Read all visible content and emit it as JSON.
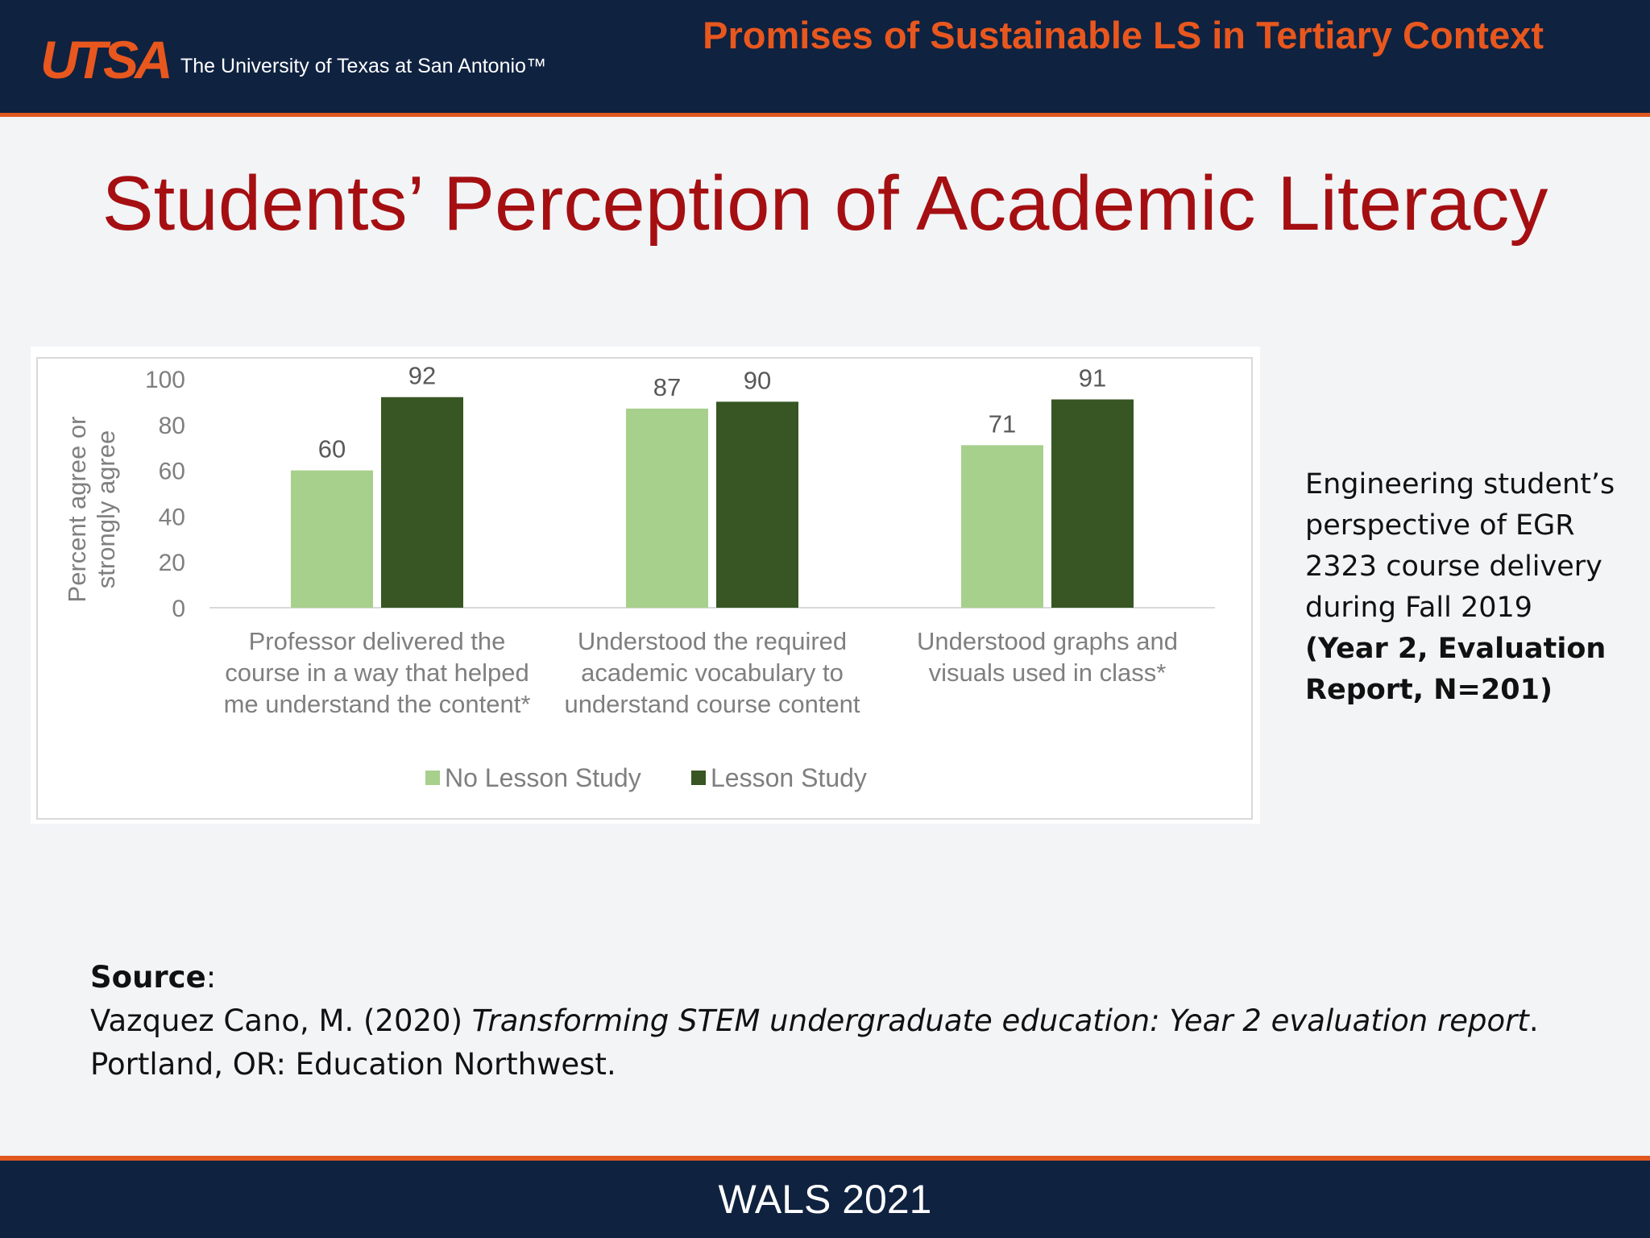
{
  "header": {
    "logo": "UTSA",
    "university": "The University of Texas at San Antonio™",
    "title": "Promises of Sustainable LS in Tertiary Context"
  },
  "slide": {
    "title": "Students’ Perception of Academic Literacy"
  },
  "side_note": {
    "line1": "Engineering student’s",
    "line2": "perspective of EGR",
    "line3": "2323 course delivery",
    "line4": "during Fall 2019",
    "bold1": "(Year 2, Evaluation",
    "bold2": "Report, N=201)"
  },
  "source": {
    "label": "Source",
    "colon": ":",
    "citation_start": "Vazquez Cano, M. (2020) ",
    "citation_title": "Transforming STEM undergraduate education: Year 2 evaluation report",
    "citation_end": ".",
    "citation_line2": "Portland, OR: Education Northwest."
  },
  "footer": {
    "text": "WALS 2021"
  },
  "colors": {
    "no_lesson_study": "#a8d08d",
    "lesson_study": "#375623",
    "header_bg": "#0f2240",
    "accent_orange": "#e8571e",
    "title_red": "#a50f12"
  },
  "chart_data": {
    "type": "bar",
    "ylabel": [
      "Percent agree or",
      "strongly agree"
    ],
    "ylim": [
      0,
      100
    ],
    "yticks": [
      0,
      20,
      40,
      60,
      80,
      100
    ],
    "grid": false,
    "legend_position": "bottom",
    "categories": [
      [
        "Professor delivered the",
        "course in a way that helped",
        "me understand the content*"
      ],
      [
        "Understood the required",
        "academic vocabulary to",
        "understand course content"
      ],
      [
        "Understood graphs and",
        "visuals used in class*"
      ]
    ],
    "series": [
      {
        "name": "No Lesson Study",
        "color": "#a8d08d",
        "values": [
          60,
          87,
          71
        ]
      },
      {
        "name": "Lesson Study",
        "color": "#375623",
        "values": [
          92,
          90,
          91
        ]
      }
    ]
  }
}
